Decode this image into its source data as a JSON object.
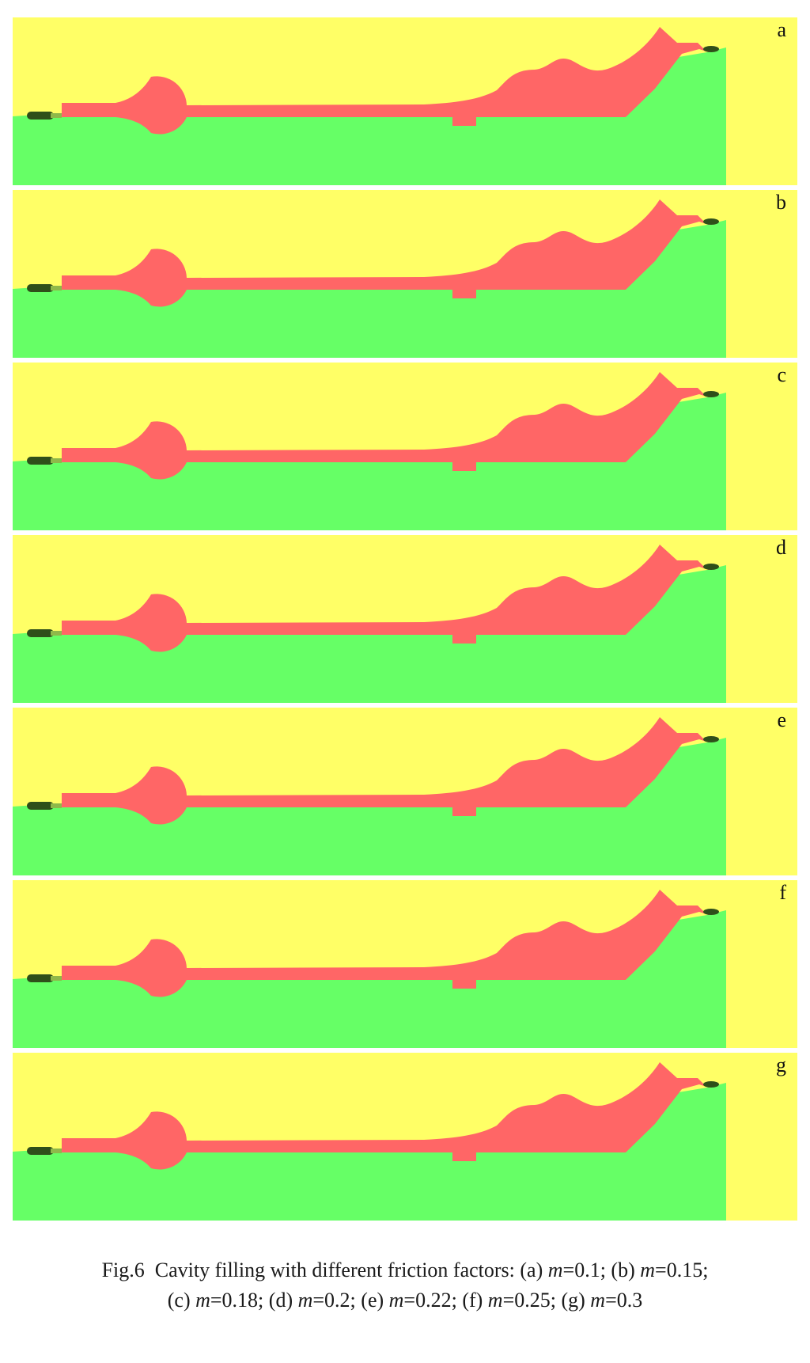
{
  "colors": {
    "upper_die": "#ffff66",
    "lower_die": "#66ff66",
    "billet": "#ff6666",
    "flash": "#2f4f1a",
    "flash_highlight": "#8fb84a"
  },
  "panels": [
    {
      "label": "a",
      "friction_factor": 0.1
    },
    {
      "label": "b",
      "friction_factor": 0.15
    },
    {
      "label": "c",
      "friction_factor": 0.18
    },
    {
      "label": "d",
      "friction_factor": 0.2
    },
    {
      "label": "e",
      "friction_factor": 0.22
    },
    {
      "label": "f",
      "friction_factor": 0.25
    },
    {
      "label": "g",
      "friction_factor": 0.3
    }
  ],
  "caption": {
    "prefix": "Fig.6",
    "title": "Cavity filling with different friction factors:",
    "items": [
      {
        "tag": "(a)",
        "symbol": "m",
        "value": "=0.1;"
      },
      {
        "tag": "(b)",
        "symbol": "m",
        "value": "=0.15;"
      },
      {
        "tag": "(c)",
        "symbol": "m",
        "value": "=0.18;"
      },
      {
        "tag": "(d)",
        "symbol": "m",
        "value": "=0.2;"
      },
      {
        "tag": "(e)",
        "symbol": "m",
        "value": "=0.22;"
      },
      {
        "tag": "(f)",
        "symbol": "m",
        "value": "=0.25;"
      },
      {
        "tag": "(g)",
        "symbol": "m",
        "value": "=0.3"
      }
    ]
  }
}
